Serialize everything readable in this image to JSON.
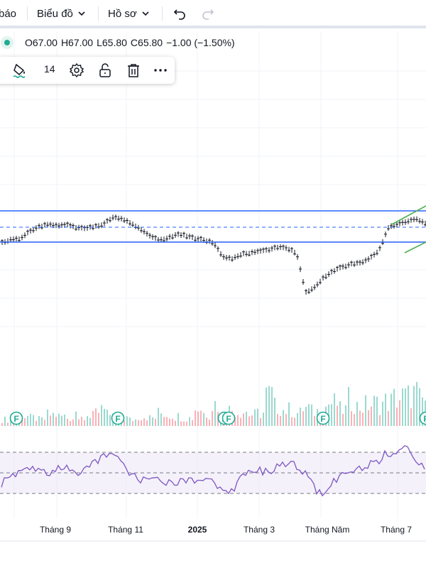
{
  "toolbar": {
    "alert_fragment": "báo",
    "chart_menu": "Biểu đồ",
    "profile_menu": "Hồ sơ",
    "undo_icon": "undo-icon",
    "redo_icon": "redo-icon"
  },
  "legend": {
    "open": "O67.00",
    "high": "H67.00",
    "low": "L65.80",
    "close": "C65.80",
    "change": "−1.00 (−1.50%)",
    "status_color": "#22ab94"
  },
  "drawing_toolbar": {
    "line_width": "14",
    "icons": [
      "paint-bucket-icon",
      "settings-icon",
      "unlock-icon",
      "trash-icon",
      "more-icon"
    ]
  },
  "events": {
    "dividend_marker": "F"
  },
  "x_axis": {
    "labels": [
      "Tháng 9",
      "Tháng 11",
      "2025",
      "Tháng 3",
      "Tháng Năm",
      "Tháng 7"
    ]
  },
  "colors": {
    "up": "#22ab94",
    "down": "#f7525f",
    "channel": "#2962ff",
    "trend": "#4caf50",
    "rsi_line": "#7e57c2",
    "rsi_band": "#ede7f6",
    "grid": "#f0f3fa",
    "candle": "#131722"
  },
  "chart_data": {
    "type": "candlestick",
    "x": [
      "Tháng 9",
      "Tháng 11",
      "2025",
      "Tháng 3",
      "Tháng Năm",
      "Tháng 7"
    ],
    "last_bar": {
      "open": 67.0,
      "high": 67.0,
      "low": 65.8,
      "close": 65.8,
      "change": -1.0,
      "change_pct": -1.5
    },
    "closes_relative": [
      -0.55,
      -0.42,
      -0.4,
      -0.15,
      0.02,
      0.1,
      0.05,
      0.08,
      0.0,
      -0.05,
      0.02,
      0.1,
      0.35,
      0.3,
      0.15,
      -0.05,
      -0.3,
      -0.45,
      -0.38,
      -0.25,
      -0.3,
      -0.4,
      -0.45,
      -0.55,
      -1.05,
      -1.1,
      -0.95,
      -0.9,
      -0.85,
      -0.8,
      -0.7,
      -0.75,
      -0.9,
      -2.3,
      -2.1,
      -1.75,
      -1.55,
      -1.4,
      -1.3,
      -1.25,
      -1.1,
      -0.8,
      0.0,
      0.1,
      0.2,
      0.3,
      0.15
    ],
    "rsi_levels": [
      70,
      50,
      30
    ],
    "volume_relative": [
      0.2,
      0.15,
      0.3,
      0.25,
      0.2,
      0.35,
      0.3,
      0.25,
      0.45,
      0.2,
      0.6,
      0.35,
      0.3,
      0.25,
      0.2,
      0.3,
      0.25,
      0.4,
      0.35,
      0.3,
      0.25,
      0.55,
      0.4,
      0.7,
      0.3,
      0.5,
      0.45,
      0.35,
      0.4,
      0.95,
      0.6,
      0.5,
      0.4,
      0.55,
      0.45,
      0.6,
      0.7,
      0.5,
      0.8,
      0.6,
      0.65,
      0.7,
      0.75,
      0.85,
      0.9,
      1.0,
      0.8
    ],
    "rsi_values": [
      40,
      45,
      50,
      55,
      52,
      48,
      55,
      58,
      50,
      54,
      60,
      65,
      70,
      60,
      50,
      42,
      45,
      48,
      40,
      38,
      44,
      42,
      45,
      40,
      35,
      32,
      45,
      55,
      52,
      50,
      55,
      60,
      58,
      50,
      35,
      28,
      40,
      48,
      52,
      55,
      58,
      62,
      70,
      68,
      75,
      60,
      55
    ]
  }
}
